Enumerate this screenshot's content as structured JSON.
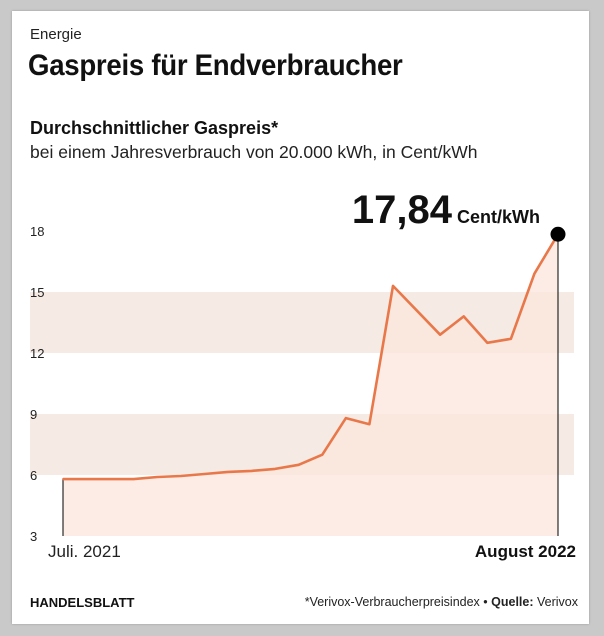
{
  "header": {
    "kicker": "Energie",
    "title": "Gaspreis für Endverbraucher",
    "subtitle": "Durchschnittlicher Gaspreis*",
    "subtitle2": "bei einem Jahresverbrauch von 20.000 kWh, in Cent/kWh"
  },
  "chart_data": {
    "type": "area",
    "title": "Gaspreis für Endverbraucher",
    "ylabel": "Cent/kWh",
    "ylim": [
      3,
      18
    ],
    "yticks": [
      "3",
      "6",
      "9",
      "12",
      "15",
      "18"
    ],
    "x_start_label": "Juli. 2021",
    "x_end_label": "August 2022",
    "values": [
      5.8,
      5.8,
      5.8,
      5.8,
      5.9,
      5.95,
      6.05,
      6.15,
      6.2,
      6.3,
      6.5,
      7.0,
      8.8,
      8.5,
      15.3,
      14.1,
      12.9,
      13.8,
      12.5,
      12.7,
      15.9,
      17.84
    ],
    "highlight": {
      "value": "17,84",
      "unit": "Cent/kWh"
    },
    "colors": {
      "line": "#e8784a",
      "area": "#fbe6dc",
      "band": "#f5ebe4",
      "dot": "#000000"
    }
  },
  "footer": {
    "brand": "HANDELSBLATT",
    "note": "*Verivox-Verbraucherpreisindex",
    "source_label": "Quelle:",
    "source_value": "Verivox"
  }
}
